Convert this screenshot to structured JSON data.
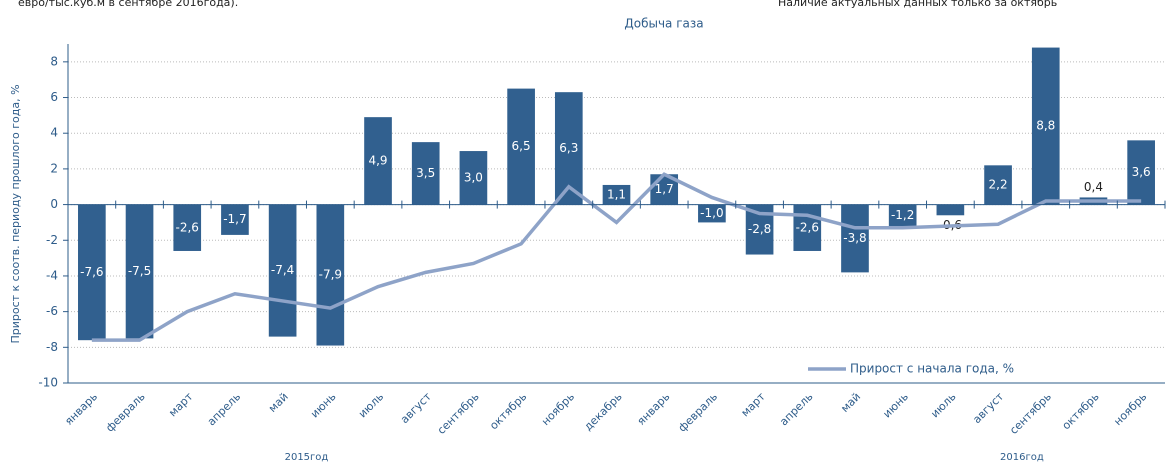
{
  "header_note_left": "евро/тыс.куб.м в сентябре 2016года).",
  "header_note_right": "Наличие актуальных данных только за октябрь",
  "chart_data": {
    "type": "bar_line",
    "title": "Добыча газа",
    "y_axis_label": "Прирост к соотв. периоду прошлого года, %",
    "categories": [
      "январь",
      "февраль",
      "март",
      "апрель",
      "май",
      "июнь",
      "июль",
      "август",
      "сентябрь",
      "октябрь",
      "ноябрь",
      "декабрь",
      "январь",
      "февраль",
      "март",
      "апрель",
      "май",
      "июнь",
      "июль",
      "август",
      "сентябрь",
      "октябрь",
      "ноябрь"
    ],
    "groups": [
      "2015год",
      "2016год"
    ],
    "series": [
      {
        "type": "bar",
        "color": "#31608f",
        "values": [
          -7.6,
          -7.5,
          -2.6,
          -1.7,
          -7.4,
          -7.9,
          4.9,
          3.5,
          3.0,
          6.5,
          6.3,
          1.1,
          1.7,
          -1.0,
          -2.8,
          -2.6,
          -3.8,
          -1.2,
          -0.6,
          2.2,
          8.8,
          0.4,
          3.6
        ],
        "value_labels": [
          "-7,6",
          "-7,5",
          "-2,6",
          "-1,7",
          "-7,4",
          "-7,9",
          "4,9",
          "3,5",
          "3,0",
          "6,5",
          "6,3",
          "1,1",
          "1,7",
          "-1,0",
          "-2,8",
          "-2,6",
          "-3,8",
          "-1,2",
          "-0,6",
          "2,2",
          "8,8",
          "0,4",
          "3,6"
        ]
      },
      {
        "type": "line",
        "name": "Прирост с начала года, %",
        "color": "#8ea3c8",
        "values": [
          -7.6,
          -7.6,
          -6.0,
          -5.0,
          -5.4,
          -5.8,
          -4.6,
          -3.8,
          -3.3,
          -2.2,
          1.0,
          -1.0,
          1.7,
          0.4,
          -0.5,
          -0.6,
          -1.3,
          -1.3,
          -1.2,
          -1.1,
          0.2,
          0.2,
          0.2
        ]
      }
    ],
    "ylim": [
      -10,
      9
    ],
    "yticks": [
      -10,
      -8,
      -6,
      -4,
      -2,
      0,
      2,
      4,
      6,
      8
    ],
    "grid": true,
    "legend": "lower right"
  }
}
